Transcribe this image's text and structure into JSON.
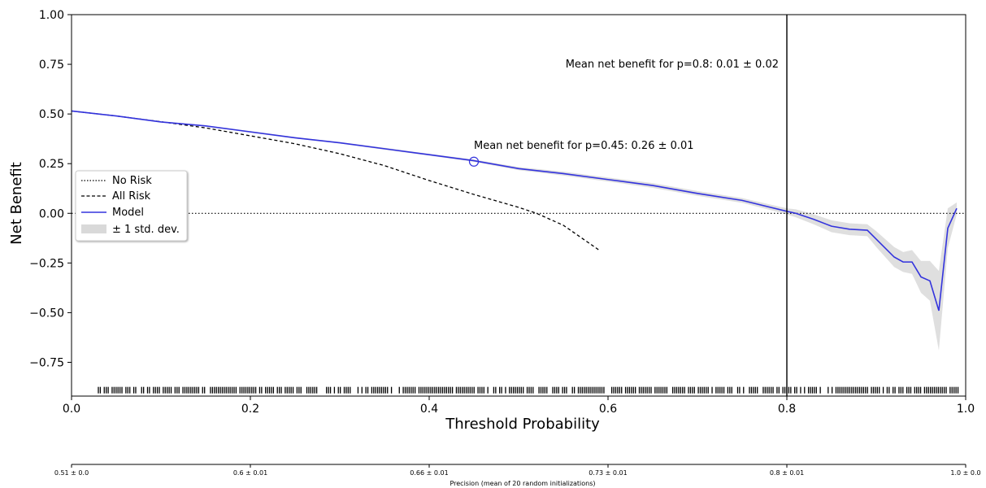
{
  "chart_data": {
    "type": "line",
    "xlabel": "Threshold Probability",
    "ylabel": "Net Benefit",
    "xlim": [
      0.0,
      1.0
    ],
    "ylim": [
      -0.92,
      1.0
    ],
    "x_ticks": [
      0.0,
      0.2,
      0.4,
      0.6,
      0.8,
      1.0
    ],
    "x_tick_labels": [
      "0.0",
      "0.2",
      "0.4",
      "0.6",
      "0.8",
      "1.0"
    ],
    "y_ticks": [
      1.0,
      0.75,
      0.5,
      0.25,
      0.0,
      -0.25,
      -0.5,
      -0.75
    ],
    "y_tick_labels": [
      "1.00",
      "0.75",
      "0.50",
      "0.25",
      "0.00",
      "−0.25",
      "−0.50",
      "−0.75"
    ],
    "grid": false,
    "legend_position": "center-left",
    "legend": [
      {
        "label": "No Risk",
        "style": "dotted",
        "color": "#000000"
      },
      {
        "label": "All Risk",
        "style": "dashed",
        "color": "#000000"
      },
      {
        "label": "Model",
        "style": "solid",
        "color": "#3333dd"
      },
      {
        "label": "± 1 std. dev.",
        "style": "band",
        "color": "#d9d9d9"
      }
    ],
    "series": [
      {
        "name": "No Risk",
        "x": [
          0.0,
          1.0
        ],
        "y": [
          0.0,
          0.0
        ]
      },
      {
        "name": "All Risk",
        "x": [
          0.0,
          0.05,
          0.1,
          0.15,
          0.2,
          0.25,
          0.3,
          0.35,
          0.4,
          0.45,
          0.5,
          0.52,
          0.55,
          0.59
        ],
        "y": [
          0.515,
          0.49,
          0.461,
          0.43,
          0.39,
          0.35,
          0.3,
          0.24,
          0.165,
          0.095,
          0.03,
          0.0,
          -0.06,
          -0.185
        ]
      },
      {
        "name": "Model",
        "x": [
          0.0,
          0.05,
          0.1,
          0.15,
          0.2,
          0.25,
          0.3,
          0.35,
          0.4,
          0.45,
          0.5,
          0.55,
          0.6,
          0.65,
          0.7,
          0.75,
          0.8,
          0.81,
          0.83,
          0.85,
          0.87,
          0.89,
          0.9,
          0.92,
          0.93,
          0.94,
          0.95,
          0.96,
          0.97,
          0.98,
          0.99
        ],
        "y": [
          0.515,
          0.49,
          0.46,
          0.44,
          0.41,
          0.38,
          0.355,
          0.325,
          0.295,
          0.265,
          0.225,
          0.2,
          0.17,
          0.14,
          0.1,
          0.065,
          0.01,
          0.0,
          -0.03,
          -0.065,
          -0.08,
          -0.085,
          -0.13,
          -0.22,
          -0.245,
          -0.245,
          -0.32,
          -0.34,
          -0.49,
          -0.075,
          0.025
        ],
        "std": [
          0.003,
          0.003,
          0.003,
          0.003,
          0.004,
          0.004,
          0.004,
          0.005,
          0.005,
          0.006,
          0.008,
          0.01,
          0.01,
          0.012,
          0.012,
          0.012,
          0.015,
          0.02,
          0.025,
          0.03,
          0.03,
          0.03,
          0.04,
          0.05,
          0.05,
          0.06,
          0.08,
          0.1,
          0.2,
          0.1,
          0.03
        ]
      }
    ],
    "vertical_line_x": 0.8,
    "annotations": [
      {
        "text": "Mean net benefit for p=0.8: 0.01  ± 0.02",
        "x": 0.8,
        "y": 0.75
      },
      {
        "text": "Mean net benefit for p=0.45: 0.26  ± 0.01",
        "x": 0.45,
        "y": 0.26,
        "marker": "circle"
      }
    ],
    "rug_y": -0.89,
    "rug_density": {
      "x_start": 0.03,
      "x_end": 0.995
    },
    "secondary_axis": {
      "label": "Precision (mean of 20 random initializations)",
      "ticks": [
        {
          "x": 0.0,
          "label": "0.51 ± 0.0"
        },
        {
          "x": 0.2,
          "label": "0.6 ± 0.01"
        },
        {
          "x": 0.4,
          "label": "0.66 ± 0.01"
        },
        {
          "x": 0.6,
          "label": "0.73 ± 0.01"
        },
        {
          "x": 0.8,
          "label": "0.8 ± 0.01"
        },
        {
          "x": 1.0,
          "label": "1.0 ± 0.0"
        }
      ]
    }
  }
}
